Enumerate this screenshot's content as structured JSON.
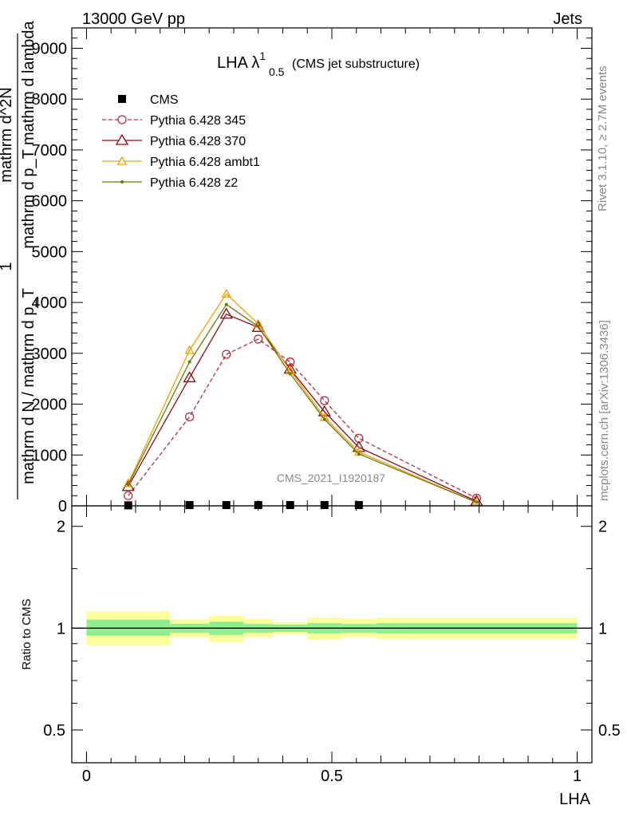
{
  "header": {
    "left": "13000 GeV pp",
    "right": "Jets"
  },
  "side_labels": {
    "rivet": "Rivet 3.1.10, ≥ 2.7M events",
    "mcplots": "mcplots.cern.ch [arXiv:1306.3436]"
  },
  "chart_data": [
    {
      "type": "line",
      "title_main": "LHA λ",
      "title_sup": "1",
      "title_sub": "0.5",
      "title_note": "(CMS jet substructure)",
      "watermark": "CMS_2021_I1920187",
      "ylabel_numerator": "1",
      "ylabel_denominator": "mathrm d N / mathrm d p_T",
      "ylabel_top_line1": "mathrm d^2N",
      "ylabel_top_line2": "mathrm d p_T mathrm d lambda",
      "xlim": [
        -0.03,
        1.03
      ],
      "ylim": [
        0,
        9400
      ],
      "yticks": [
        {
          "value": 0,
          "label": "0"
        },
        {
          "value": 1000,
          "label": "1000"
        },
        {
          "value": 2000,
          "label": "2000"
        },
        {
          "value": 3000,
          "label": "3000"
        },
        {
          "value": 4000,
          "label": "4000"
        },
        {
          "value": 5000,
          "label": "5000"
        },
        {
          "value": 6000,
          "label": "6000"
        },
        {
          "value": 7000,
          "label": "7000"
        },
        {
          "value": 8000,
          "label": "8000"
        },
        {
          "value": 9000,
          "label": "9000"
        }
      ],
      "series": [
        {
          "name": "CMS",
          "style": "data",
          "color": "#000000",
          "x": [
            0.085,
            0.21,
            0.285,
            0.35,
            0.415,
            0.485,
            0.555
          ],
          "y": [
            10,
            15,
            15,
            15,
            15,
            15,
            15
          ]
        },
        {
          "name": "Pythia 6.428 345",
          "style": "circle-dashed",
          "color": "#b03040",
          "x": [
            0.085,
            0.21,
            0.285,
            0.35,
            0.415,
            0.485,
            0.555,
            0.795
          ],
          "y": [
            200,
            1750,
            2980,
            3280,
            2830,
            2070,
            1330,
            150
          ]
        },
        {
          "name": "Pythia 6.428 370",
          "style": "triangle-open",
          "color": "#8b0a14",
          "x": [
            0.085,
            0.21,
            0.285,
            0.35,
            0.415,
            0.485,
            0.555,
            0.795
          ],
          "y": [
            380,
            2520,
            3770,
            3510,
            2690,
            1850,
            1150,
            90
          ]
        },
        {
          "name": "Pythia 6.428 ambt1",
          "style": "triangle-small",
          "color": "#f0a000",
          "x": [
            0.085,
            0.21,
            0.285,
            0.35,
            0.415,
            0.485,
            0.555,
            0.795
          ],
          "y": [
            440,
            3060,
            4170,
            3580,
            2660,
            1740,
            1060,
            70
          ]
        },
        {
          "name": "Pythia 6.428 z2",
          "style": "dot",
          "color": "#6b7a10",
          "x": [
            0.085,
            0.21,
            0.285,
            0.35,
            0.415,
            0.485,
            0.555,
            0.795
          ],
          "y": [
            420,
            2830,
            3960,
            3530,
            2600,
            1700,
            1020,
            70
          ]
        }
      ]
    },
    {
      "type": "area",
      "ylabel": "Ratio to CMS",
      "xlabel": "LHA",
      "xlim": [
        -0.03,
        1.03
      ],
      "ylim": [
        0.4,
        2.3
      ],
      "log_y": true,
      "reference_value": 1,
      "xticks": [
        {
          "value": 0,
          "label": "0"
        },
        {
          "value": 0.5,
          "label": "0.5"
        },
        {
          "value": 1,
          "label": "1"
        }
      ],
      "yticks": [
        {
          "value": 0.5,
          "label": "0.5"
        },
        {
          "value": 1,
          "label": "1"
        },
        {
          "value": 2,
          "label": "2"
        }
      ],
      "bands": {
        "inner_color": "#90ee90",
        "outer_color": "#ffff99",
        "bins": [
          {
            "x0": 0.0,
            "x1": 0.17,
            "inner": [
              0.95,
              1.06
            ],
            "outer": [
              0.89,
              1.12
            ]
          },
          {
            "x0": 0.17,
            "x1": 0.25,
            "inner": [
              0.97,
              1.03
            ],
            "outer": [
              0.94,
              1.06
            ]
          },
          {
            "x0": 0.25,
            "x1": 0.32,
            "inner": [
              0.955,
              1.045
            ],
            "outer": [
              0.91,
              1.09
            ]
          },
          {
            "x0": 0.32,
            "x1": 0.38,
            "inner": [
              0.97,
              1.03
            ],
            "outer": [
              0.94,
              1.065
            ]
          },
          {
            "x0": 0.38,
            "x1": 0.45,
            "inner": [
              0.975,
              1.025
            ],
            "outer": [
              0.96,
              1.04
            ]
          },
          {
            "x0": 0.45,
            "x1": 0.52,
            "inner": [
              0.965,
              1.035
            ],
            "outer": [
              0.925,
              1.075
            ]
          },
          {
            "x0": 0.52,
            "x1": 0.59,
            "inner": [
              0.97,
              1.03
            ],
            "outer": [
              0.94,
              1.065
            ]
          },
          {
            "x0": 0.59,
            "x1": 1.0,
            "inner": [
              0.965,
              1.035
            ],
            "outer": [
              0.93,
              1.075
            ]
          }
        ]
      }
    }
  ]
}
